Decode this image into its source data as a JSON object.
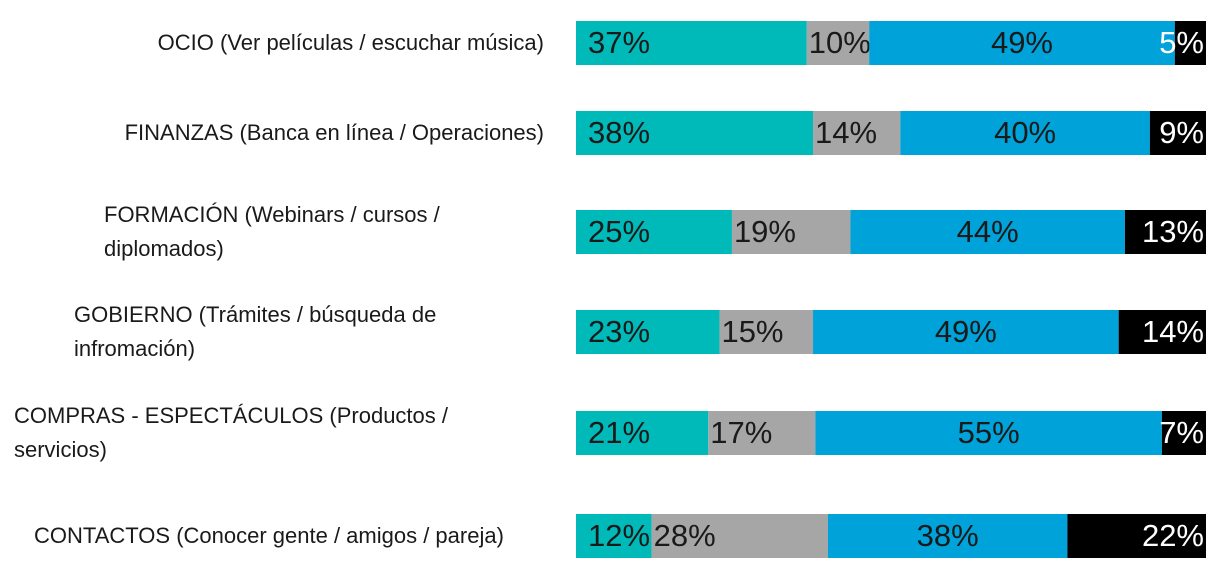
{
  "chart_data": {
    "type": "stacked-bar-horizontal",
    "categories": [
      "OCIO (Ver películas / escuchar música)",
      "FINANZAS (Banca en línea / Operaciones)",
      "FORMACIÓN (Webinars / cursos / diplomados)",
      "GOBIERNO (Trámites / búsqueda de infromación)",
      "COMPRAS - ESPECTÁCULOS (Productos / servicios)",
      "CONTACTOS (Conocer gente / amigos / pareja)"
    ],
    "series": [
      {
        "color": "#00b9b9",
        "values": [
          37,
          38,
          25,
          23,
          21,
          12
        ],
        "value_labels": [
          "37%",
          "38%",
          "25%",
          "23%",
          "21%",
          "12%"
        ]
      },
      {
        "color": "#a6a6a6",
        "values": [
          10,
          14,
          19,
          15,
          17,
          28
        ],
        "value_labels": [
          "10%",
          "14%",
          "19%",
          "15%",
          "17%",
          "28%"
        ]
      },
      {
        "color": "#00a2da",
        "values": [
          49,
          40,
          44,
          49,
          55,
          38
        ],
        "value_labels": [
          "49%",
          "40%",
          "44%",
          "49%",
          "55%",
          "38%"
        ]
      },
      {
        "color": "#000000",
        "values": [
          5,
          9,
          13,
          14,
          7,
          22
        ],
        "value_labels": [
          "5%",
          "9%",
          "13%",
          "14%",
          "7%",
          "22%"
        ]
      }
    ]
  }
}
